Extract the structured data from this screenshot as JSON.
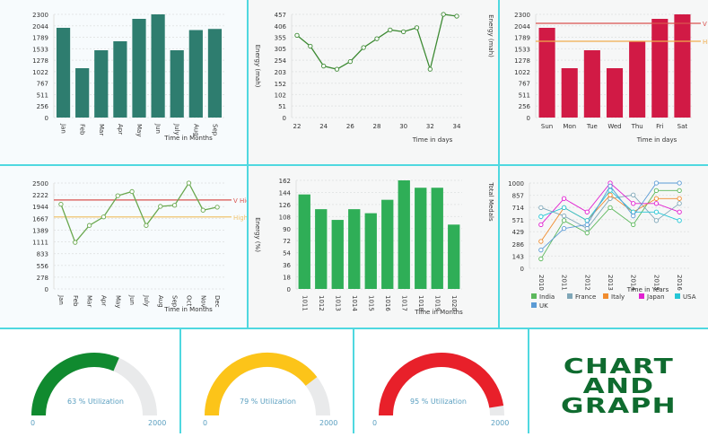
{
  "colors": {
    "teal": "#2e7d6f",
    "line_green": "#4a8a3c",
    "crimson": "#d11a45",
    "bar_green": "#2fae57",
    "v_high": "#d9534f",
    "high": "#f0ad4e",
    "border": "#4fd8e0",
    "gauge_track": "#e9eaeb"
  },
  "chart_data": [
    {
      "type": "bar",
      "categories": [
        "Jan",
        "Feb",
        "Mar",
        "Apr",
        "May",
        "Jun",
        "July",
        "Aug",
        "Sep"
      ],
      "values": [
        2000,
        1100,
        1500,
        1700,
        2200,
        2300,
        1500,
        1950,
        1975
      ],
      "yticks": [
        "0",
        "256",
        "511",
        "767",
        "1022",
        "1278",
        "1533",
        "1789",
        "2044",
        "2300"
      ],
      "ylim": [
        0,
        2300
      ],
      "xlabel": "Time in Months",
      "ylabel": "",
      "color": "#2e7d6f",
      "grid": true
    },
    {
      "type": "line",
      "x": [
        22,
        23,
        24,
        25,
        26,
        27,
        28,
        29,
        30,
        31,
        32,
        33,
        34
      ],
      "values": [
        364,
        316,
        228,
        214,
        248,
        310,
        349,
        388,
        380,
        398,
        214,
        457,
        449
      ],
      "xticks": [
        "22",
        "24",
        "26",
        "28",
        "30",
        "32",
        "34"
      ],
      "xlim": [
        22,
        34
      ],
      "yticks": [
        "0",
        "51",
        "102",
        "152",
        "203",
        "254",
        "305",
        "355",
        "406",
        "457"
      ],
      "ylim": [
        0,
        457
      ],
      "xlabel": "Time in days",
      "ylabel": "Energy (mah)",
      "color": "#3d8a33",
      "grid": true
    },
    {
      "type": "bar",
      "categories": [
        "Sun",
        "Mon",
        "Tue",
        "Wed",
        "Thu",
        "Fri",
        "Sat"
      ],
      "values": [
        2000,
        1100,
        1500,
        1100,
        1700,
        2200,
        2300
      ],
      "yticks": [
        "0",
        "256",
        "511",
        "767",
        "1022",
        "1278",
        "1533",
        "1789",
        "2044",
        "2300"
      ],
      "ylim": [
        0,
        2300
      ],
      "xlabel": "Time in days",
      "ylabel": "Energy (mah)",
      "color": "#d11a45",
      "grid": true,
      "ref_lines": [
        {
          "label": "V High",
          "value": 2100,
          "color": "#d9534f"
        },
        {
          "label": "High",
          "value": 1700,
          "color": "#f0ad4e"
        }
      ]
    },
    {
      "type": "line",
      "categories": [
        "Jan",
        "Feb",
        "Mar",
        "Apr",
        "May",
        "Jun",
        "July",
        "Aug",
        "Sep",
        "Oct",
        "Nov",
        "Dec"
      ],
      "values": [
        2000,
        1100,
        1500,
        1700,
        2200,
        2300,
        1500,
        1950,
        1975,
        2500,
        1860,
        1930
      ],
      "yticks": [
        "0",
        "278",
        "556",
        "833",
        "1111",
        "1389",
        "1667",
        "1944",
        "2222",
        "2500"
      ],
      "ylim": [
        0,
        2500
      ],
      "xlabel": "Time in Months",
      "ylabel": "",
      "color": "#6aa84f",
      "grid": true,
      "ref_lines": [
        {
          "label": "V High",
          "value": 2100,
          "color": "#d9534f"
        },
        {
          "label": "High",
          "value": 1700,
          "color": "#f0c36d"
        }
      ]
    },
    {
      "type": "bar",
      "categories": [
        "1011",
        "1012",
        "1013",
        "1014",
        "1015",
        "1016",
        "1017",
        "1018",
        "1019",
        "1020"
      ],
      "values": [
        141,
        119,
        103,
        119,
        113,
        133,
        162,
        151,
        151,
        96
      ],
      "yticks": [
        "0",
        "18",
        "36",
        "54",
        "72",
        "90",
        "108",
        "126",
        "144",
        "162"
      ],
      "ylim": [
        0,
        162
      ],
      "xlabel": "Time in Months",
      "ylabel": "Energy (%)",
      "color": "#2fae57",
      "grid": true
    },
    {
      "type": "line",
      "categories": [
        "2010",
        "2011",
        "2012",
        "2013",
        "2014",
        "2015",
        "2016"
      ],
      "yticks": [
        "0",
        "143",
        "286",
        "429",
        "571",
        "714",
        "857",
        "1000"
      ],
      "ylim": [
        0,
        1000
      ],
      "xlabel": "Time in Years",
      "ylabel": "Total Medals",
      "grid": true,
      "legend": "bottom",
      "series": [
        {
          "name": "India",
          "color": "#5cb85c",
          "values": [
            110,
            560,
            414,
            712,
            512,
            912,
            912
          ]
        },
        {
          "name": "France",
          "color": "#7fa7b8",
          "values": [
            712,
            614,
            467,
            818,
            860,
            560,
            760
          ]
        },
        {
          "name": "Italy",
          "color": "#f08c2e",
          "values": [
            316,
            712,
            560,
            860,
            660,
            818,
            818
          ]
        },
        {
          "name": "Japan",
          "color": "#e020d0",
          "values": [
            512,
            818,
            660,
            1000,
            760,
            760,
            660
          ]
        },
        {
          "name": "USA",
          "color": "#25c6d6",
          "values": [
            607,
            712,
            560,
            915,
            660,
            660,
            560
          ]
        },
        {
          "name": "UK",
          "color": "#5b9bd5",
          "values": [
            214,
            467,
            512,
            965,
            614,
            1000,
            1000
          ]
        }
      ]
    }
  ],
  "gauges": [
    {
      "value_pct": 63,
      "label": "63 % Utilization",
      "min": "0",
      "max": "2000",
      "color": "#108a2f"
    },
    {
      "value_pct": 79,
      "label": "79 % Utilization",
      "min": "0",
      "max": "2000",
      "color": "#fcc419"
    },
    {
      "value_pct": 95,
      "label": "95 % Utilization",
      "min": "0",
      "max": "2000",
      "color": "#e8202a"
    }
  ],
  "logo": {
    "line1": "CHART",
    "line2": "AND",
    "line3": "GRAPH"
  }
}
